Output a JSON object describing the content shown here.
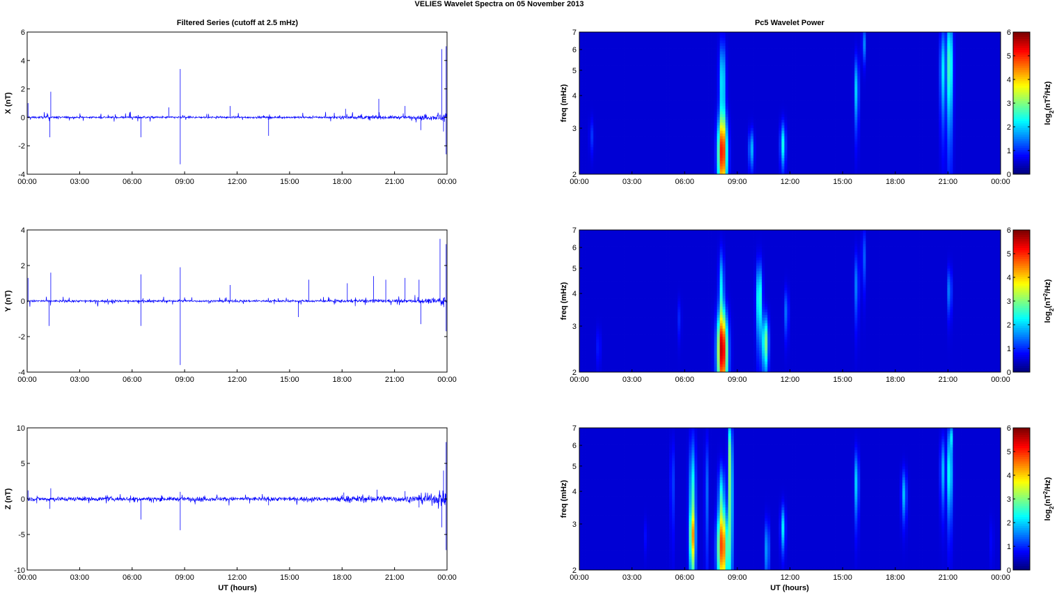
{
  "figure_title": "VELIES Wavelet Spectra on 05 November  2013",
  "left_title": "Filtered Series (cutoff at 2.5 mHz)",
  "right_title": "Pc5 Wavelet Power",
  "xlabel": "UT (hours)",
  "colorbar_label": "log2(nT2/Hz)",
  "colorbar_ticks": [
    "0",
    "1",
    "2",
    "3",
    "4",
    "5",
    "6"
  ],
  "freq_ylabel": "freq (mHz)",
  "freq_ticks": [
    "2",
    "3",
    "4",
    "5",
    "6",
    "7"
  ],
  "time_ticks": [
    "00:00",
    "03:00",
    "06:00",
    "09:00",
    "12:00",
    "15:00",
    "18:00",
    "21:00",
    "00:00"
  ],
  "colors": {
    "series": "#0000ff",
    "background_power": "#00008f"
  },
  "chart_data": [
    {
      "type": "line",
      "component": "X",
      "ylabel": "X (nT)",
      "ylim": [
        -4,
        6
      ],
      "yticks": [
        "-4",
        "-2",
        "0",
        "2",
        "4",
        "6"
      ],
      "xlim_hours": [
        0,
        24
      ],
      "spikes": [
        [
          0.05,
          1.0
        ],
        [
          1.35,
          1.8
        ],
        [
          1.3,
          -1.4
        ],
        [
          6.5,
          -1.4
        ],
        [
          8.1,
          0.7
        ],
        [
          8.75,
          3.4
        ],
        [
          8.75,
          -3.3
        ],
        [
          11.6,
          0.8
        ],
        [
          13.8,
          -1.3
        ],
        [
          18.2,
          0.6
        ],
        [
          20.1,
          1.3
        ],
        [
          21.6,
          0.8
        ],
        [
          22.5,
          -0.9
        ],
        [
          23.7,
          4.8
        ],
        [
          23.95,
          5.0
        ],
        [
          23.95,
          -2.6
        ],
        [
          23.8,
          -1.0
        ]
      ]
    },
    {
      "type": "line",
      "component": "Y",
      "ylabel": "Y (nT)",
      "ylim": [
        -4,
        4
      ],
      "yticks": [
        "-4",
        "-2",
        "0",
        "2",
        " 4"
      ],
      "xlim_hours": [
        0,
        24
      ],
      "spikes": [
        [
          0.05,
          1.3
        ],
        [
          1.35,
          1.6
        ],
        [
          1.25,
          -1.4
        ],
        [
          6.5,
          1.5
        ],
        [
          6.5,
          -1.4
        ],
        [
          8.75,
          1.9
        ],
        [
          8.75,
          -3.6
        ],
        [
          11.6,
          0.9
        ],
        [
          15.5,
          -0.9
        ],
        [
          16.1,
          1.2
        ],
        [
          18.3,
          1.0
        ],
        [
          19.8,
          1.4
        ],
        [
          20.5,
          1.2
        ],
        [
          21.6,
          1.3
        ],
        [
          22.4,
          1.2
        ],
        [
          22.5,
          -1.3
        ],
        [
          23.6,
          3.5
        ],
        [
          23.95,
          3.2
        ],
        [
          23.95,
          -1.7
        ]
      ]
    },
    {
      "type": "line",
      "component": "Z",
      "ylabel": "Z (nT)",
      "ylim": [
        -10,
        10
      ],
      "yticks": [
        "-10",
        "-5",
        "0",
        "5",
        "10"
      ],
      "xlim_hours": [
        0,
        24
      ],
      "spikes": [
        [
          0.05,
          1.2
        ],
        [
          1.35,
          1.5
        ],
        [
          1.3,
          -1.4
        ],
        [
          6.5,
          -2.9
        ],
        [
          8.75,
          1.0
        ],
        [
          8.75,
          -4.4
        ],
        [
          13.8,
          -0.9
        ],
        [
          18.1,
          0.9
        ],
        [
          20.0,
          1.3
        ],
        [
          21.6,
          1.1
        ],
        [
          22.4,
          -1.2
        ],
        [
          23.7,
          -4.0
        ],
        [
          23.95,
          8.0
        ],
        [
          23.95,
          -7.2
        ],
        [
          23.8,
          4.0
        ]
      ]
    },
    {
      "type": "heatmap",
      "component": "X",
      "ylabel": "freq (mHz)",
      "ylim_mhz": [
        2,
        7
      ],
      "clim": [
        0,
        6
      ],
      "xlim_hours": [
        0,
        24
      ],
      "blobs": [
        [
          8.15,
          2.4,
          0.18,
          0.6,
          5.0
        ],
        [
          8.15,
          4.5,
          0.12,
          1.2,
          2.0
        ],
        [
          9.8,
          2.5,
          0.1,
          0.3,
          1.5
        ],
        [
          11.6,
          2.6,
          0.1,
          0.35,
          2.0
        ],
        [
          15.8,
          4.2,
          0.08,
          0.9,
          1.8
        ],
        [
          16.2,
          6.3,
          0.06,
          0.7,
          1.4
        ],
        [
          20.7,
          5.0,
          0.1,
          1.4,
          1.8
        ],
        [
          21.1,
          5.2,
          0.12,
          1.8,
          2.6
        ],
        [
          0.7,
          2.8,
          0.08,
          0.3,
          0.6
        ]
      ]
    },
    {
      "type": "heatmap",
      "component": "Y",
      "ylabel": "freq (mHz)",
      "ylim_mhz": [
        2,
        7
      ],
      "clim": [
        0,
        6
      ],
      "xlim_hours": [
        0,
        24
      ],
      "blobs": [
        [
          8.15,
          2.4,
          0.2,
          0.65,
          5.5
        ],
        [
          8.1,
          4.2,
          0.1,
          1.0,
          1.8
        ],
        [
          10.25,
          3.8,
          0.11,
          0.9,
          2.5
        ],
        [
          10.6,
          2.6,
          0.12,
          0.45,
          2.8
        ],
        [
          11.8,
          3.4,
          0.08,
          0.5,
          1.1
        ],
        [
          15.8,
          4.3,
          0.08,
          0.9,
          1.2
        ],
        [
          16.2,
          5.5,
          0.07,
          1.0,
          1.0
        ],
        [
          21.1,
          4.1,
          0.07,
          0.6,
          1.5
        ],
        [
          1.1,
          2.5,
          0.08,
          0.3,
          0.5
        ],
        [
          5.7,
          3.2,
          0.07,
          0.4,
          0.5
        ]
      ]
    },
    {
      "type": "heatmap",
      "component": "Z",
      "ylabel": "freq (mHz)",
      "ylim_mhz": [
        2,
        7
      ],
      "clim": [
        0,
        6
      ],
      "xlim_hours": [
        0,
        24
      ],
      "blobs": [
        [
          8.15,
          2.4,
          0.2,
          0.6,
          4.5
        ],
        [
          8.1,
          3.8,
          0.12,
          0.8,
          2.0
        ],
        [
          6.45,
          3.3,
          0.12,
          1.8,
          2.5
        ],
        [
          6.45,
          2.7,
          0.11,
          0.4,
          2.0
        ],
        [
          8.6,
          3.6,
          0.1,
          1.6,
          2.5
        ],
        [
          8.6,
          6.0,
          0.07,
          1.2,
          2.0
        ],
        [
          7.25,
          4.0,
          0.07,
          1.5,
          1.0
        ],
        [
          5.3,
          4.3,
          0.07,
          1.2,
          0.9
        ],
        [
          10.7,
          2.4,
          0.08,
          0.45,
          1.6
        ],
        [
          11.6,
          2.9,
          0.09,
          0.4,
          1.8
        ],
        [
          15.8,
          4.3,
          0.08,
          0.9,
          1.8
        ],
        [
          18.5,
          3.9,
          0.1,
          0.6,
          1.5
        ],
        [
          20.7,
          4.8,
          0.09,
          1.0,
          1.5
        ],
        [
          21.1,
          4.7,
          0.1,
          1.2,
          2.3
        ],
        [
          21.15,
          6.5,
          0.06,
          0.5,
          1.8
        ],
        [
          3.8,
          2.7,
          0.06,
          0.3,
          0.4
        ],
        [
          23.5,
          2.6,
          0.06,
          0.4,
          0.4
        ]
      ]
    }
  ]
}
